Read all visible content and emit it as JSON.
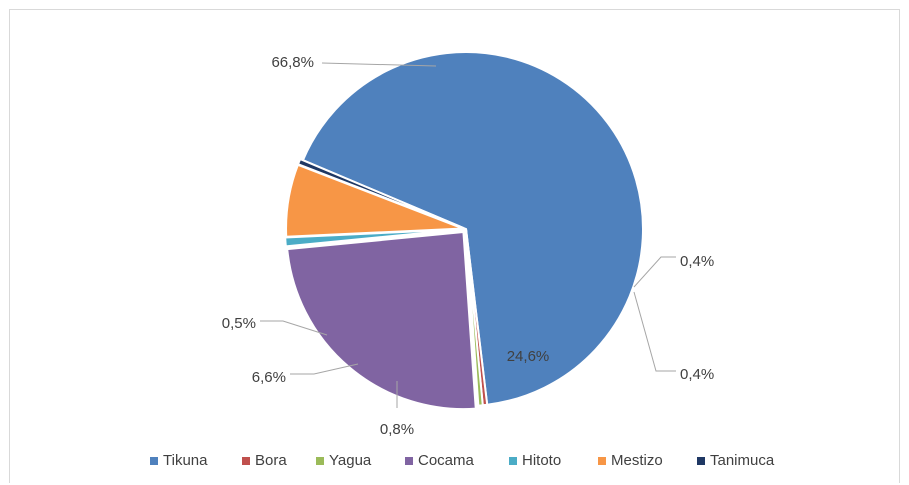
{
  "chart_data": {
    "type": "pie",
    "categories": [
      "Tikuna",
      "Bora",
      "Yagua",
      "Cocama",
      "Hitoto",
      "Mestizo",
      "Tanimuca"
    ],
    "values": [
      66.8,
      0.4,
      0.4,
      24.6,
      0.8,
      6.6,
      0.5
    ],
    "labels": [
      "66,8%",
      "0,4%",
      "0,4%",
      "24,6%",
      "0,8%",
      "6,6%",
      "0,5%"
    ],
    "colors": [
      "#4f81bd",
      "#c0504d",
      "#9bbb59",
      "#8064a2",
      "#4bacc6",
      "#f79646",
      "#1f3864"
    ],
    "legend_position": "bottom",
    "title": ""
  }
}
